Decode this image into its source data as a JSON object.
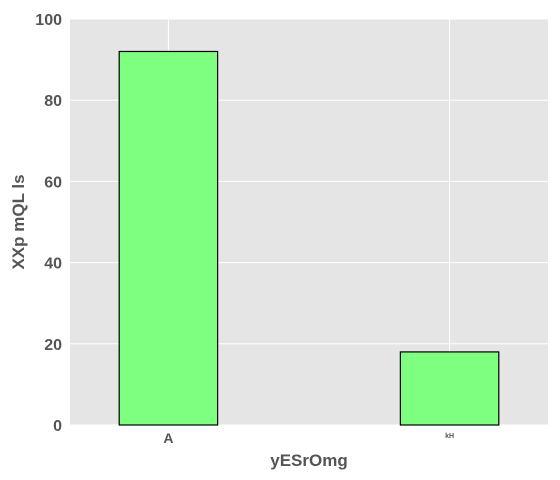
{
  "chart_data": {
    "type": "bar",
    "title": "",
    "xlabel": "yESrOmg",
    "ylabel": "XXp mQL ls",
    "categories": [
      "A",
      "kH"
    ],
    "series": [
      {
        "name": "",
        "values": [
          92,
          18
        ]
      }
    ],
    "ylim": [
      0,
      100
    ],
    "yticks": [
      0,
      20,
      40,
      60,
      80,
      100
    ],
    "grid": true,
    "legend": "none"
  },
  "colors": {
    "panel_background": "#e5e5e5",
    "grid": "#ffffff",
    "bar_fill": "#7fff7f",
    "bar_edge": "#000000",
    "text": "#555555"
  }
}
